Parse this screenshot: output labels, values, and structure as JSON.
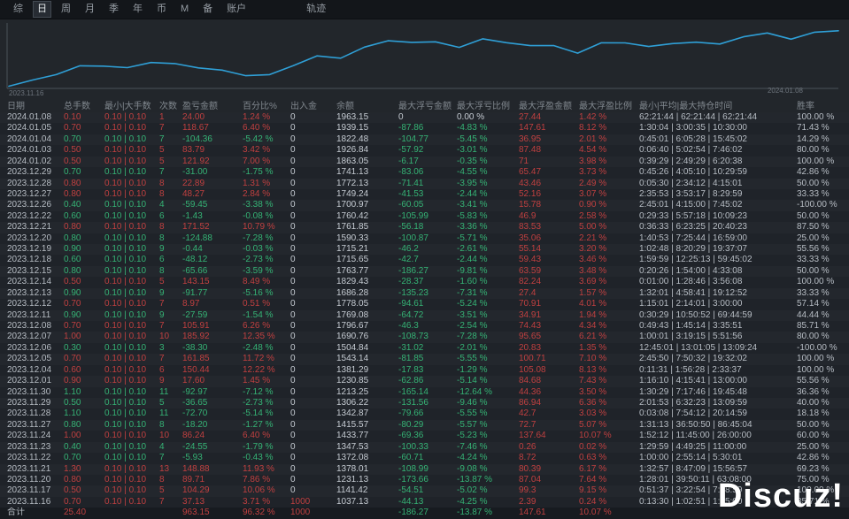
{
  "topbar": {
    "tabs": [
      "综",
      "日",
      "周",
      "月",
      "季",
      "年",
      "币",
      "M",
      "备",
      "账户"
    ],
    "active_tab": "日",
    "trail_tab": "轨迹"
  },
  "colors": {
    "red": "#c04040",
    "green": "#35b375",
    "chart_line": "#2f9fd6",
    "axis": "#4a5158",
    "background": "#22262b"
  },
  "chart_data": {
    "type": "line",
    "title": "",
    "xlabel": "",
    "ylabel": "",
    "x_start_label": "2023.11.16",
    "x_end_label": "2024.01.08",
    "legend": [],
    "grid": false,
    "ylim": [
      1000,
      2000
    ],
    "series": [
      {
        "name": "余额",
        "values": [
          1037.13,
          1141.42,
          1231.13,
          1378.01,
          1372.08,
          1347.53,
          1433.77,
          1415.57,
          1342.87,
          1306.22,
          1213.25,
          1230.85,
          1381.29,
          1543.14,
          1504.84,
          1690.76,
          1796.67,
          1769.08,
          1778.05,
          1686.28,
          1829.43,
          1763.77,
          1715.65,
          1715.21,
          1590.33,
          1761.85,
          1760.42,
          1700.97,
          1749.24,
          1772.13,
          1741.13,
          1863.05,
          1926.84,
          1822.48,
          1939.15,
          1963.15
        ]
      }
    ]
  },
  "table": {
    "headers": [
      "日期",
      "总手数",
      "最小|大手数",
      "次数",
      "盈亏金额",
      "百分比%",
      "出入金",
      "余额",
      "最大浮亏金额",
      "最大浮亏比例",
      "最大浮盈金额",
      "最大浮盈比例",
      "最小|平均|最大持仓时间",
      "胜率"
    ],
    "rows": [
      [
        "2024.01.08",
        "0.10",
        "0.10 | 0.10",
        "1",
        "24.00",
        "1.24 %",
        "0",
        "1963.15",
        "0",
        "0.00 %",
        "27.44",
        "1.42 %",
        "62:21:44 | 62:21:44 | 62:21:44",
        "100.00 %",
        "w"
      ],
      [
        "2024.01.05",
        "0.70",
        "0.10 | 0.10",
        "7",
        "118.67",
        "6.40 %",
        "0",
        "1939.15",
        "-87.86",
        "-4.83 %",
        "147.61",
        "8.12 %",
        "1:30:04 | 3:00:35 | 10:30:00",
        "71.43 %",
        "w"
      ],
      [
        "2024.01.04",
        "0.70",
        "0.10 | 0.10",
        "7",
        "-104.36",
        "-5.42 %",
        "0",
        "1822.48",
        "-104.77",
        "-5.45 %",
        "36.95",
        "2.01 %",
        "0:45:01 | 6:05:28 | 15:45:02",
        "14.29 %",
        "l"
      ],
      [
        "2024.01.03",
        "0.50",
        "0.10 | 0.10",
        "5",
        "83.79",
        "3.42 %",
        "0",
        "1926.84",
        "-57.92",
        "-3.01 %",
        "87.48",
        "4.54 %",
        "0:06:40 | 5:02:54 | 7:46:02",
        "80.00 %",
        "w"
      ],
      [
        "2024.01.02",
        "0.50",
        "0.10 | 0.10",
        "5",
        "121.92",
        "7.00 %",
        "0",
        "1863.05",
        "-6.17",
        "-0.35 %",
        "71",
        "3.98 %",
        "0:39:29 | 2:49:29 | 6:20:38",
        "100.00 %",
        "w"
      ],
      [
        "2023.12.29",
        "0.70",
        "0.10 | 0.10",
        "7",
        "-31.00",
        "-1.75 %",
        "0",
        "1741.13",
        "-83.06",
        "-4.55 %",
        "65.47",
        "3.73 %",
        "0:45:26 | 4:05:10 | 10:29:59",
        "42.86 %",
        "l"
      ],
      [
        "2023.12.28",
        "0.80",
        "0.10 | 0.10",
        "8",
        "22.89",
        "1.31 %",
        "0",
        "1772.13",
        "-71.41",
        "-3.95 %",
        "43.46",
        "2.49 %",
        "0:05:30 | 2:34:12 | 4:15:01",
        "50.00 %",
        "w"
      ],
      [
        "2023.12.27",
        "0.80",
        "0.10 | 0.10",
        "8",
        "48.27",
        "2.84 %",
        "0",
        "1749.24",
        "-41.53",
        "-2.44 %",
        "52.16",
        "3.07 %",
        "2:35:53 | 3:53:17 | 8:29:59",
        "33.33 %",
        "w"
      ],
      [
        "2023.12.26",
        "0.40",
        "0.10 | 0.10",
        "4",
        "-59.45",
        "-3.38 %",
        "0",
        "1700.97",
        "-60.05",
        "-3.41 %",
        "15.78",
        "0.90 %",
        "2:45:01 | 4:15:00 | 7:45:02",
        "-100.00 %",
        "l"
      ],
      [
        "2023.12.22",
        "0.60",
        "0.10 | 0.10",
        "6",
        "-1.43",
        "-0.08 %",
        "0",
        "1760.42",
        "-105.99",
        "-5.83 %",
        "46.9",
        "2.58 %",
        "0:29:33 | 5:57:18 | 10:09:23",
        "50.00 %",
        "l"
      ],
      [
        "2023.12.21",
        "0.80",
        "0.10 | 0.10",
        "8",
        "171.52",
        "10.79 %",
        "0",
        "1761.85",
        "-56.18",
        "-3.36 %",
        "83.53",
        "5.00 %",
        "0:36:33 | 6:23:25 | 20:40:23",
        "87.50 %",
        "w"
      ],
      [
        "2023.12.20",
        "0.80",
        "0.10 | 0.10",
        "8",
        "-124.88",
        "-7.28 %",
        "0",
        "1590.33",
        "-100.87",
        "-5.71 %",
        "35.06",
        "2.21 %",
        "1:40:53 | 7:25:44 | 16:59:00",
        "25.00 %",
        "l"
      ],
      [
        "2023.12.19",
        "0.90",
        "0.10 | 0.10",
        "9",
        "-0.44",
        "-0.03 %",
        "0",
        "1715.21",
        "-46.2",
        "-2.61 %",
        "55.14",
        "3.20 %",
        "1:02:48 | 8:20:29 | 19:37:07",
        "55.56 %",
        "l"
      ],
      [
        "2023.12.18",
        "0.60",
        "0.10 | 0.10",
        "6",
        "-48.12",
        "-2.73 %",
        "0",
        "1715.65",
        "-42.7",
        "-2.44 %",
        "59.43",
        "3.46 %",
        "1:59:59 | 12:25:13 | 59:45:02",
        "33.33 %",
        "l"
      ],
      [
        "2023.12.15",
        "0.80",
        "0.10 | 0.10",
        "8",
        "-65.66",
        "-3.59 %",
        "0",
        "1763.77",
        "-186.27",
        "-9.81 %",
        "63.59",
        "3.48 %",
        "0:20:26 | 1:54:00 | 4:33:08",
        "50.00 %",
        "l"
      ],
      [
        "2023.12.14",
        "0.50",
        "0.10 | 0.10",
        "5",
        "143.15",
        "8.49 %",
        "0",
        "1829.43",
        "-28.37",
        "-1.60 %",
        "82.24",
        "3.69 %",
        "0:01:00 | 1:28:46 | 3:56:08",
        "100.00 %",
        "w"
      ],
      [
        "2023.12.13",
        "0.90",
        "0.10 | 0.10",
        "9",
        "-91.77",
        "-5.16 %",
        "0",
        "1686.28",
        "-135.23",
        "-7.31 %",
        "27.4",
        "1.57 %",
        "1:32:01 | 4:58:41 | 19:12:52",
        "33.33 %",
        "l"
      ],
      [
        "2023.12.12",
        "0.70",
        "0.10 | 0.10",
        "7",
        "8.97",
        "0.51 %",
        "0",
        "1778.05",
        "-94.61",
        "-5.24 %",
        "70.91",
        "4.01 %",
        "1:15:01 | 2:14:01 | 3:00:00",
        "57.14 %",
        "w"
      ],
      [
        "2023.12.11",
        "0.90",
        "0.10 | 0.10",
        "9",
        "-27.59",
        "-1.54 %",
        "0",
        "1769.08",
        "-64.72",
        "-3.51 %",
        "34.91",
        "1.94 %",
        "0:30:29 | 10:50:52 | 69:44:59",
        "44.44 %",
        "l"
      ],
      [
        "2023.12.08",
        "0.70",
        "0.10 | 0.10",
        "7",
        "105.91",
        "6.26 %",
        "0",
        "1796.67",
        "-46.3",
        "-2.54 %",
        "74.43",
        "4.34 %",
        "0:49:43 | 1:45:14 | 3:35:51",
        "85.71 %",
        "w"
      ],
      [
        "2023.12.07",
        "1.00",
        "0.10 | 0.10",
        "10",
        "185.92",
        "12.35 %",
        "0",
        "1690.76",
        "-108.73",
        "-7.28 %",
        "95.65",
        "6.21 %",
        "1:00:01 | 3:19:15 | 5:51:56",
        "80.00 %",
        "w"
      ],
      [
        "2023.12.06",
        "0.30",
        "0.10 | 0.10",
        "3",
        "-38.30",
        "-2.48 %",
        "0",
        "1504.84",
        "-31.02",
        "-2.01 %",
        "20.83",
        "1.35 %",
        "12:45:01 | 13:01:05 | 13:09:24",
        "-100.00 %",
        "l"
      ],
      [
        "2023.12.05",
        "0.70",
        "0.10 | 0.10",
        "7",
        "161.85",
        "11.72 %",
        "0",
        "1543.14",
        "-81.85",
        "-5.55 %",
        "100.71",
        "7.10 %",
        "2:45:50 | 7:50:32 | 19:32:02",
        "100.00 %",
        "w"
      ],
      [
        "2023.12.04",
        "0.60",
        "0.10 | 0.10",
        "6",
        "150.44",
        "12.22 %",
        "0",
        "1381.29",
        "-17.83",
        "-1.29 %",
        "105.08",
        "8.13 %",
        "0:11:31 | 1:56:28 | 2:33:37",
        "100.00 %",
        "w"
      ],
      [
        "2023.12.01",
        "0.90",
        "0.10 | 0.10",
        "9",
        "17.60",
        "1.45 %",
        "0",
        "1230.85",
        "-62.86",
        "-5.14 %",
        "84.68",
        "7.43 %",
        "1:16:10 | 4:15:41 | 13:00:00",
        "55.56 %",
        "w"
      ],
      [
        "2023.11.30",
        "1.10",
        "0.10 | 0.10",
        "11",
        "-92.97",
        "-7.12 %",
        "0",
        "1213.25",
        "-165.14",
        "-12.64 %",
        "44.36",
        "3.50 %",
        "1:30:29 | 7:17:46 | 19:45:48",
        "36.36 %",
        "l"
      ],
      [
        "2023.11.29",
        "0.50",
        "0.10 | 0.10",
        "5",
        "-36.65",
        "-2.73 %",
        "0",
        "1306.22",
        "-131.56",
        "-9.46 %",
        "86.94",
        "6.36 %",
        "2:01:53 | 6:32:23 | 13:09:59",
        "40.00 %",
        "l"
      ],
      [
        "2023.11.28",
        "1.10",
        "0.10 | 0.10",
        "11",
        "-72.70",
        "-5.14 %",
        "0",
        "1342.87",
        "-79.66",
        "-5.55 %",
        "42.7",
        "3.03 %",
        "0:03:08 | 7:54:12 | 20:14:59",
        "18.18 %",
        "l"
      ],
      [
        "2023.11.27",
        "0.80",
        "0.10 | 0.10",
        "8",
        "-18.20",
        "-1.27 %",
        "0",
        "1415.57",
        "-80.29",
        "-5.57 %",
        "72.7",
        "5.07 %",
        "1:31:13 | 36:50:50 | 86:45:04",
        "50.00 %",
        "l"
      ],
      [
        "2023.11.24",
        "1.00",
        "0.10 | 0.10",
        "10",
        "86.24",
        "6.40 %",
        "0",
        "1433.77",
        "-69.36",
        "-5.23 %",
        "137.64",
        "10.07 %",
        "1:52:12 | 11:45:00 | 26:00:00",
        "60.00 %",
        "w"
      ],
      [
        "2023.11.23",
        "0.40",
        "0.10 | 0.10",
        "4",
        "-24.55",
        "-1.79 %",
        "0",
        "1347.53",
        "-100.33",
        "-7.46 %",
        "0.26",
        "0.02 %",
        "1:29:59 | 4:49:25 | 11:00:00",
        "25.00 %",
        "l"
      ],
      [
        "2023.11.22",
        "0.70",
        "0.10 | 0.10",
        "7",
        "-5.93",
        "-0.43 %",
        "0",
        "1372.08",
        "-60.71",
        "-4.24 %",
        "8.72",
        "0.63 %",
        "1:00:00 | 2:55:14 | 5:30:01",
        "42.86 %",
        "l"
      ],
      [
        "2023.11.21",
        "1.30",
        "0.10 | 0.10",
        "13",
        "148.88",
        "11.93 %",
        "0",
        "1378.01",
        "-108.99",
        "-9.08 %",
        "80.39",
        "6.17 %",
        "1:32:57 | 8:47:09 | 15:56:57",
        "69.23 %",
        "w"
      ],
      [
        "2023.11.20",
        "0.80",
        "0.10 | 0.10",
        "8",
        "89.71",
        "7.86 %",
        "0",
        "1231.13",
        "-173.66",
        "-13.87 %",
        "87.04",
        "7.64 %",
        "1:28:01 | 39:50:11 | 63:08:00",
        "75.00 %",
        "w"
      ],
      [
        "2023.11.17",
        "0.50",
        "0.10 | 0.10",
        "5",
        "104.29",
        "10.06 %",
        "0",
        "1141.42",
        "-54.51",
        "-5.02 %",
        "99.3",
        "9.15 %",
        "0:51:37 | 3:22:54 | 7:08:59",
        "100.00 %",
        "w"
      ],
      [
        "2023.11.16",
        "0.70",
        "0.10 | 0.10",
        "7",
        "37.13",
        "3.71 %",
        "1000",
        "1037.13",
        "-44.13",
        "-4.25 %",
        "2.39",
        "0.24 %",
        "0:13:30 | 1:02:51 | 1:45:00",
        "85.71 %",
        "w"
      ]
    ],
    "total_row": [
      "合计",
      "25.40",
      "",
      "",
      "963.15",
      "96.32 %",
      "1000",
      "",
      "-186.27",
      "-13.87 %",
      "147.61",
      "10.07 %",
      "",
      "",
      "w"
    ]
  },
  "watermark": "Discuz!"
}
